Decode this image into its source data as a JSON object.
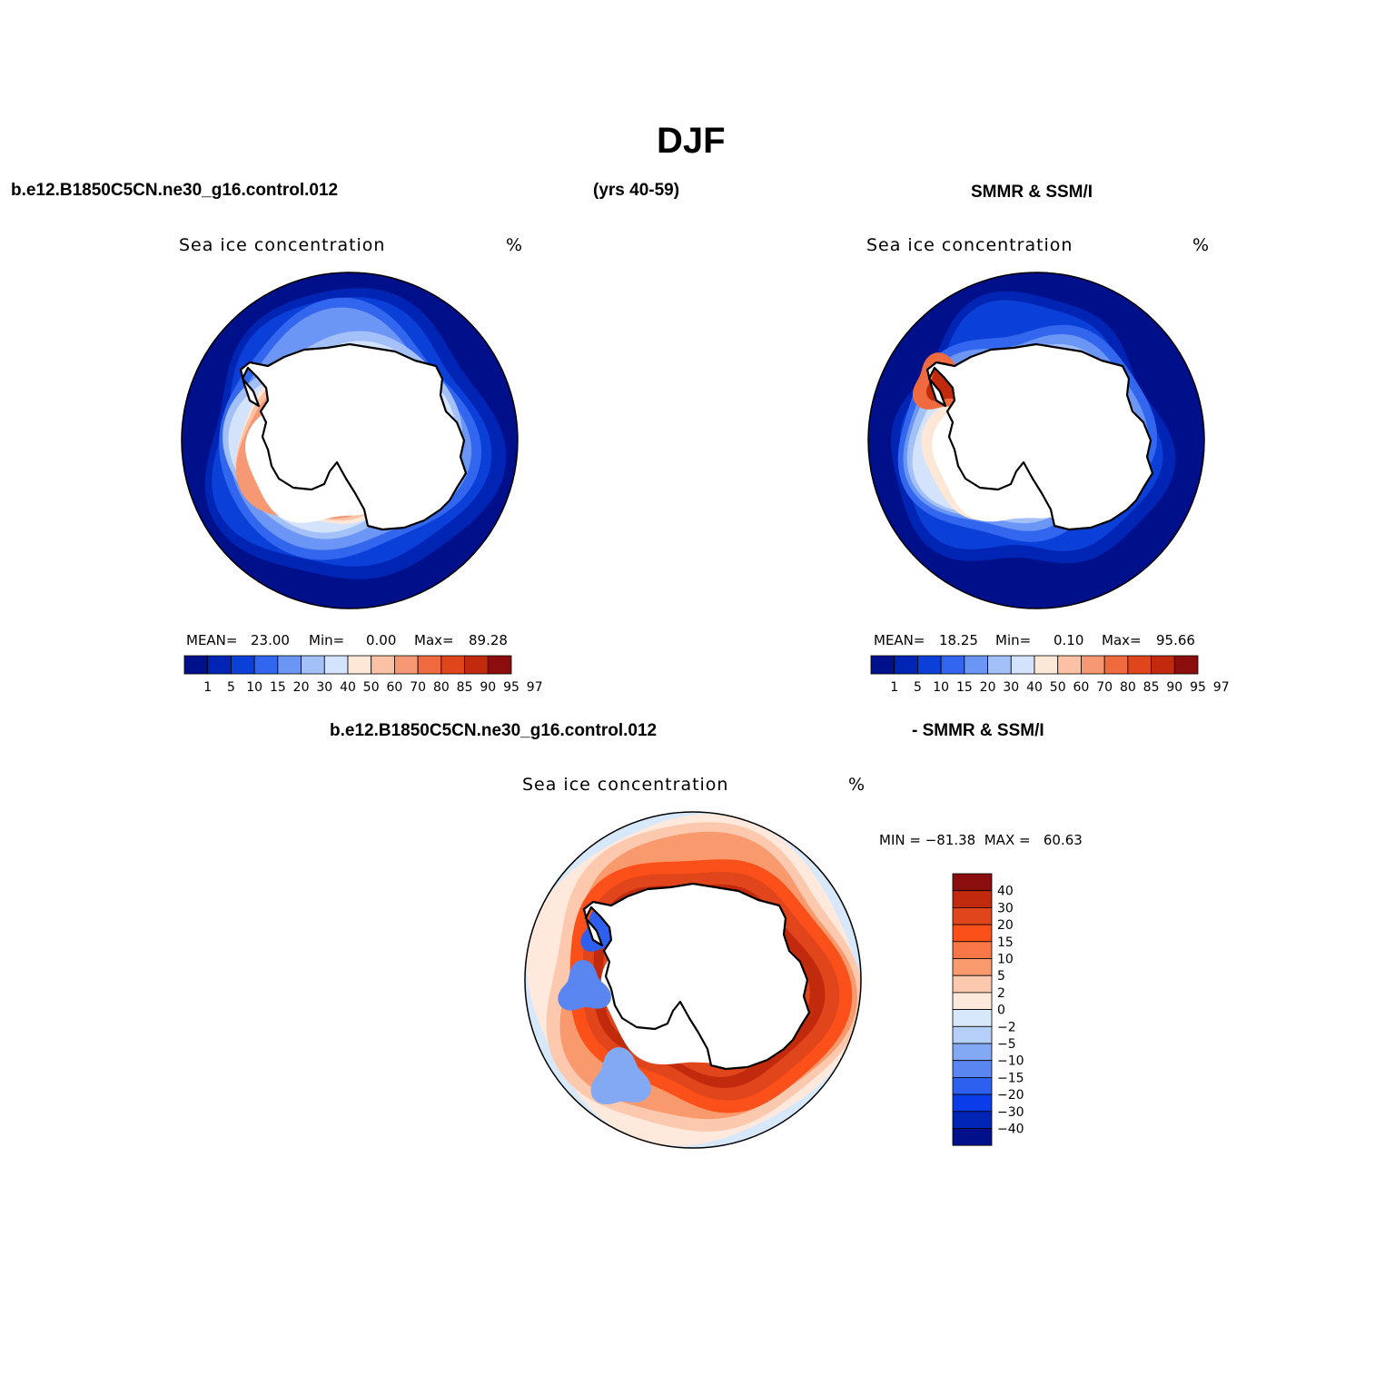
{
  "main_title": "DJF",
  "header": {
    "case_name": "b.e12.B1850C5CN.ne30_g16.control.012",
    "years": "(yrs 40-59)",
    "obs_name": "SMMR & SSM/I"
  },
  "diff_header": {
    "case_name": "b.e12.B1850C5CN.ne30_g16.control.012",
    "obs_name": "- SMMR & SSM/I"
  },
  "colors": {
    "land": "#ffffff",
    "coast": "#000000",
    "abs_scale": [
      "#000f8a",
      "#0024b4",
      "#0a3fd8",
      "#3266ee",
      "#6b96f5",
      "#a3c0f8",
      "#d3e3fb",
      "#fde7d6",
      "#fbc1a4",
      "#f79874",
      "#f06a3f",
      "#e0451b",
      "#c22a0d",
      "#8b0d0d"
    ],
    "diff_scale": [
      "#8b0d0d",
      "#c22a0d",
      "#e0451b",
      "#fb5019",
      "#f97746",
      "#f99a6e",
      "#fcc9ae",
      "#fee9dc",
      "#d8e8fb",
      "#b5cff8",
      "#84a9f4",
      "#5a86f1",
      "#2d60ef",
      "#0a3ce8",
      "#0024b4",
      "#000f8a"
    ]
  },
  "panels": [
    {
      "id": "model",
      "title": "Sea ice concentration",
      "units": "%",
      "mean_label": "MEAN=",
      "mean": "23.00",
      "min_label": "Min=",
      "min": "0.00",
      "max_label": "Max=",
      "max": "89.28",
      "colorbar_labels": [
        "1",
        "5",
        "10",
        "15",
        "20",
        "30",
        "40",
        "50",
        "60",
        "70",
        "80",
        "85",
        "90",
        "95",
        "97"
      ]
    },
    {
      "id": "obs",
      "title": "Sea ice concentration",
      "units": "%",
      "mean_label": "MEAN=",
      "mean": "18.25",
      "min_label": "Min=",
      "min": "0.10",
      "max_label": "Max=",
      "max": "95.66",
      "colorbar_labels": [
        "1",
        "5",
        "10",
        "15",
        "20",
        "30",
        "40",
        "50",
        "60",
        "70",
        "80",
        "85",
        "90",
        "95",
        "97"
      ]
    },
    {
      "id": "diff",
      "title": "Sea ice concentration",
      "units": "%",
      "minmax_text": "MIN = −81.38  MAX =   60.63",
      "colorbar_labels": [
        "40",
        "30",
        "20",
        "15",
        "10",
        "5",
        "2",
        "0",
        "−2",
        "−5",
        "−10",
        "−15",
        "−20",
        "−30",
        "−40"
      ]
    }
  ]
}
